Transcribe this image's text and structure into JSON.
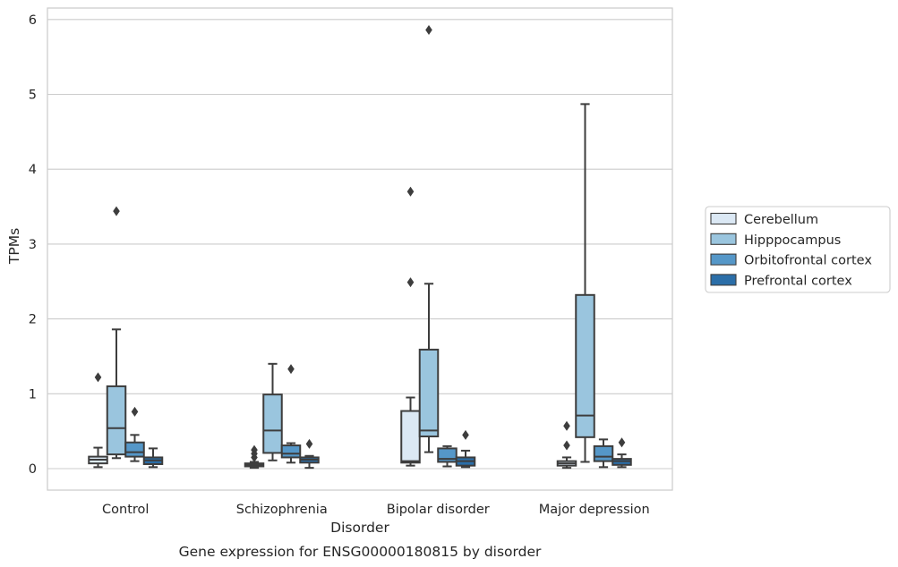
{
  "caption": "Gene expression for ENSG00000180815 by disorder",
  "chart_data": {
    "type": "box",
    "xlabel": "Disorder",
    "ylabel": "TPMs",
    "ylim": [
      -0.28,
      6.15
    ],
    "yticks": [
      0,
      1,
      2,
      3,
      4,
      5,
      6
    ],
    "grid": "horizontal",
    "legend_position": "right",
    "categories": [
      "Control",
      "Schizophrenia",
      "Bipolar disorder",
      "Major depression"
    ],
    "series": [
      {
        "name": "Cerebellum",
        "color": "#dbe8f4",
        "boxes": [
          {
            "whislo": 0.02,
            "q1": 0.07,
            "med": 0.12,
            "q3": 0.16,
            "whishi": 0.28,
            "fliers": [
              1.22
            ]
          },
          {
            "whislo": 0.01,
            "q1": 0.03,
            "med": 0.05,
            "q3": 0.07,
            "whishi": 0.09,
            "fliers": [
              0.15,
              0.2,
              0.25
            ]
          },
          {
            "whislo": 0.04,
            "q1": 0.08,
            "med": 0.1,
            "q3": 0.77,
            "whishi": 0.95,
            "fliers": [
              2.49,
              3.7
            ]
          },
          {
            "whislo": 0.01,
            "q1": 0.04,
            "med": 0.07,
            "q3": 0.1,
            "whishi": 0.15,
            "fliers": [
              0.31,
              0.57
            ]
          }
        ]
      },
      {
        "name": "Hipppocampus",
        "color": "#9ac5de",
        "boxes": [
          {
            "whislo": 0.14,
            "q1": 0.19,
            "med": 0.54,
            "q3": 1.1,
            "whishi": 1.86,
            "fliers": [
              3.44
            ]
          },
          {
            "whislo": 0.11,
            "q1": 0.21,
            "med": 0.51,
            "q3": 0.99,
            "whishi": 1.4,
            "fliers": []
          },
          {
            "whislo": 0.22,
            "q1": 0.43,
            "med": 0.51,
            "q3": 1.59,
            "whishi": 2.47,
            "fliers": [
              5.86
            ]
          },
          {
            "whislo": 0.09,
            "q1": 0.42,
            "med": 0.71,
            "q3": 2.32,
            "whishi": 4.87,
            "fliers": []
          }
        ]
      },
      {
        "name": "Orbitofrontal cortex",
        "color": "#5597c8",
        "boxes": [
          {
            "whislo": 0.1,
            "q1": 0.16,
            "med": 0.22,
            "q3": 0.35,
            "whishi": 0.45,
            "fliers": [
              0.76
            ]
          },
          {
            "whislo": 0.08,
            "q1": 0.15,
            "med": 0.2,
            "q3": 0.31,
            "whishi": 0.34,
            "fliers": [
              1.33
            ]
          },
          {
            "whislo": 0.03,
            "q1": 0.09,
            "med": 0.13,
            "q3": 0.27,
            "whishi": 0.3,
            "fliers": []
          },
          {
            "whislo": 0.02,
            "q1": 0.1,
            "med": 0.16,
            "q3": 0.3,
            "whishi": 0.39,
            "fliers": []
          }
        ]
      },
      {
        "name": "Prefrontal cortex",
        "color": "#2b6ea8",
        "boxes": [
          {
            "whislo": 0.02,
            "q1": 0.06,
            "med": 0.11,
            "q3": 0.15,
            "whishi": 0.27,
            "fliers": []
          },
          {
            "whislo": 0.01,
            "q1": 0.08,
            "med": 0.12,
            "q3": 0.15,
            "whishi": 0.17,
            "fliers": [
              0.33
            ]
          },
          {
            "whislo": 0.02,
            "q1": 0.04,
            "med": 0.1,
            "q3": 0.15,
            "whishi": 0.24,
            "fliers": [
              0.45
            ]
          },
          {
            "whislo": 0.02,
            "q1": 0.05,
            "med": 0.1,
            "q3": 0.13,
            "whishi": 0.19,
            "fliers": [
              0.35
            ]
          }
        ]
      }
    ]
  }
}
